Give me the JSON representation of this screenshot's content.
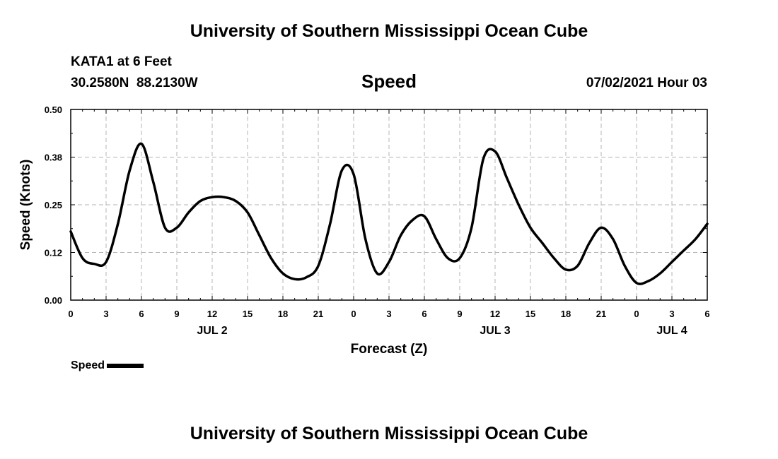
{
  "header": {
    "title": "University of Southern Mississippi Ocean Cube",
    "station": "KATA1 at 6 Feet",
    "coords": "30.2580N  88.2130W",
    "datetime": "07/02/2021 Hour 03",
    "footer": "University of Southern Mississippi Ocean Cube"
  },
  "legend": {
    "label": "Speed"
  },
  "chart_data": {
    "type": "line",
    "title": "Speed",
    "xlabel": "Forecast (Z)",
    "ylabel": "Speed (Knots)",
    "ylim": [
      0,
      0.5
    ],
    "xlim": [
      0,
      54
    ],
    "y_ticks": [
      "0.00",
      "0.12",
      "0.25",
      "0.38",
      "0.50"
    ],
    "x_ticks": [
      "0",
      "3",
      "6",
      "9",
      "12",
      "15",
      "18",
      "21",
      "0",
      "3",
      "6",
      "9",
      "12",
      "15",
      "18",
      "21",
      "0",
      "3",
      "6"
    ],
    "date_labels": [
      {
        "label": "JUL 2",
        "hour": 12
      },
      {
        "label": "JUL 3",
        "hour": 36
      },
      {
        "label": "JUL 4",
        "hour": 51
      }
    ],
    "grid": true,
    "line_color": "#000000",
    "series": [
      {
        "name": "Speed",
        "x": [
          0,
          1,
          2,
          3,
          4,
          5,
          6,
          7,
          8,
          9,
          10,
          11,
          12,
          13,
          14,
          15,
          16,
          17,
          18,
          19,
          20,
          21,
          22,
          23,
          24,
          25,
          26,
          27,
          28,
          29,
          30,
          31,
          32,
          33,
          34,
          35,
          36,
          37,
          38,
          39,
          40,
          41,
          42,
          43,
          44,
          45,
          46,
          47,
          48,
          49,
          50,
          51,
          52,
          53,
          54
        ],
        "values": [
          0.18,
          0.11,
          0.095,
          0.1,
          0.2,
          0.34,
          0.41,
          0.31,
          0.19,
          0.19,
          0.23,
          0.26,
          0.27,
          0.27,
          0.26,
          0.23,
          0.17,
          0.11,
          0.07,
          0.055,
          0.06,
          0.09,
          0.2,
          0.34,
          0.33,
          0.16,
          0.07,
          0.1,
          0.17,
          0.21,
          0.22,
          0.16,
          0.11,
          0.11,
          0.19,
          0.37,
          0.39,
          0.32,
          0.25,
          0.19,
          0.15,
          0.11,
          0.08,
          0.09,
          0.15,
          0.19,
          0.16,
          0.09,
          0.045,
          0.05,
          0.07,
          0.1,
          0.13,
          0.16,
          0.2
        ]
      }
    ]
  }
}
